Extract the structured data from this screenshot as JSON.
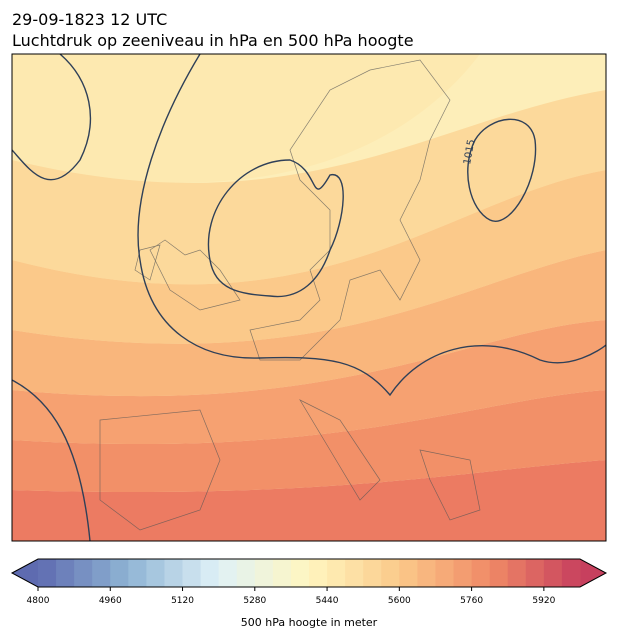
{
  "header": {
    "date": "29-09-1823 12 UTC",
    "title": "Luchtdruk op zeeniveau in hPa en 500 hPa hoogte"
  },
  "map": {
    "isobar_labels": [
      "1015"
    ]
  },
  "colorbar": {
    "label": "500 hPa hoogte in meter",
    "vmin": 4800,
    "vmax": 6000,
    "step": 40,
    "ticks": [
      4800,
      4960,
      5120,
      5280,
      5440,
      5600,
      5760,
      5920
    ],
    "colors": [
      "#5e6bb0",
      "#8fb4d4",
      "#e0f2f7",
      "#fff6bf",
      "#fbc98a",
      "#f08a66",
      "#c7405e"
    ]
  }
}
